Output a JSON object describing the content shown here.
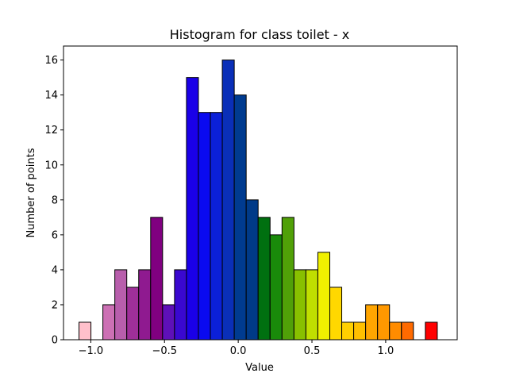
{
  "chart_data": {
    "type": "bar",
    "title": "Histogram for class toilet - x",
    "xlabel": "Value",
    "ylabel": "Number of points",
    "xlim": [
      -1.185,
      1.485
    ],
    "ylim": [
      0,
      16.8
    ],
    "grid": false,
    "legend": "none",
    "x_ticks": [
      {
        "value": -1.0,
        "label": "−1.0"
      },
      {
        "value": -0.5,
        "label": "−0.5"
      },
      {
        "value": 0.0,
        "label": "0.0"
      },
      {
        "value": 0.5,
        "label": "0.5"
      },
      {
        "value": 1.0,
        "label": "1.0"
      }
    ],
    "y_ticks": [
      {
        "value": 0,
        "label": "0"
      },
      {
        "value": 2,
        "label": "2"
      },
      {
        "value": 4,
        "label": "4"
      },
      {
        "value": 6,
        "label": "6"
      },
      {
        "value": 8,
        "label": "8"
      },
      {
        "value": 10,
        "label": "10"
      },
      {
        "value": 12,
        "label": "12"
      },
      {
        "value": 14,
        "label": "14"
      },
      {
        "value": 16,
        "label": "16"
      }
    ],
    "bin_start": -1.08,
    "bin_width": 0.081,
    "counts": [
      1,
      0,
      2,
      4,
      3,
      4,
      7,
      2,
      4,
      15,
      13,
      13,
      16,
      14,
      8,
      7,
      6,
      7,
      4,
      4,
      5,
      3,
      1,
      1,
      2,
      2,
      1,
      1,
      0,
      1
    ],
    "colors": [
      "#FFC0CB",
      "#E6A8C4",
      "#CC70B4",
      "#B85EAC",
      "#9F2F99",
      "#8F1A90",
      "#800080",
      "#5E10B8",
      "#3A08D0",
      "#1A00E8",
      "#0A0AF0",
      "#0B20D8",
      "#0A2FB8",
      "#003B90",
      "#003A88",
      "#007010",
      "#198A0A",
      "#50A008",
      "#88C000",
      "#C0DE00",
      "#F0F000",
      "#FFD800",
      "#FFD000",
      "#FFC000",
      "#FFA500",
      "#FF9800",
      "#FF8C00",
      "#FF6A00",
      "#FF5000",
      "#FF0000"
    ]
  }
}
